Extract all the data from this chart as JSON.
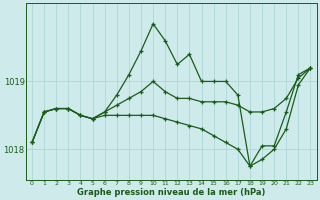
{
  "title": "Graphe pression niveau de la mer (hPa)",
  "bg_color": "#ceeaea",
  "line_color": "#1a5c1a",
  "hours": [
    0,
    1,
    2,
    3,
    4,
    5,
    6,
    7,
    8,
    9,
    10,
    11,
    12,
    13,
    14,
    15,
    16,
    17,
    18,
    19,
    20,
    21,
    22,
    23
  ],
  "series1": [
    1018.1,
    1018.55,
    1018.6,
    1018.6,
    1018.5,
    1018.45,
    1018.55,
    1018.8,
    1019.1,
    1019.45,
    1019.85,
    1019.6,
    1019.25,
    1019.4,
    1019.0,
    1019.0,
    1019.0,
    1018.8,
    1017.75,
    1018.05,
    1018.05,
    1018.55,
    1019.1,
    1019.2
  ],
  "series2": [
    1018.1,
    1018.55,
    1018.6,
    1018.6,
    1018.5,
    1018.45,
    1018.55,
    1018.65,
    1018.75,
    1018.85,
    1019.0,
    1018.85,
    1018.75,
    1018.75,
    1018.7,
    1018.7,
    1018.7,
    1018.65,
    1018.55,
    1018.55,
    1018.6,
    1018.75,
    1019.05,
    1019.2
  ],
  "series3": [
    1018.1,
    1018.55,
    1018.6,
    1018.6,
    1018.5,
    1018.45,
    1018.5,
    1018.5,
    1018.5,
    1018.5,
    1018.5,
    1018.45,
    1018.4,
    1018.35,
    1018.3,
    1018.2,
    1018.1,
    1018.0,
    1017.75,
    1017.85,
    1018.0,
    1018.3,
    1018.95,
    1019.2
  ],
  "ylim_min": 1017.55,
  "ylim_max": 1020.15,
  "yticks": [
    1018,
    1019
  ],
  "grid_color": "#a8d4d4",
  "marker": "+"
}
